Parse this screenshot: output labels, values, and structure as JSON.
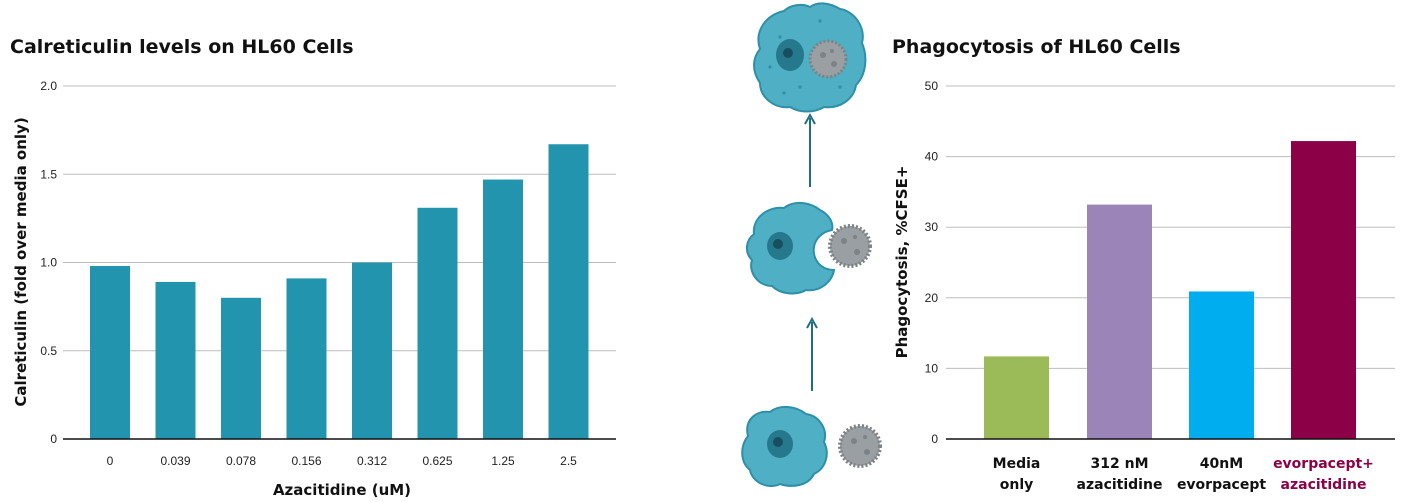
{
  "charts": {
    "left": {
      "title": "Calreticulin levels on HL60 Cells"
    },
    "right": {
      "title": "Phagocytosis of HL60 Cells"
    }
  },
  "colors": {
    "teal_bar": "#2394AD",
    "grid": "#bdbdbd",
    "axis": "#111111",
    "media_only": "#9BBB59",
    "azacitidine": "#9B85B8",
    "evorpacept": "#00AEEF",
    "combo": "#8B0046",
    "cell_body": "#4FAFC4",
    "cell_outline": "#2E8FA8",
    "cell_nucleus": "#1F6E84",
    "cancer_cell": "#9A9FA3",
    "arrow": "#1F6E84"
  },
  "diagram": {
    "icons": [
      "macrophage-engulfed-icon",
      "macrophage-engulfing-icon",
      "macrophage-approaching-icon",
      "cancer-cell-icon",
      "up-arrow-icon"
    ]
  },
  "chart_data": [
    {
      "type": "bar",
      "title": "Calreticulin levels on HL60 Cells",
      "xlabel": "Azacitidine (uM)",
      "ylabel": "Calreticulin (fold over media only)",
      "categories": [
        "0",
        "0.039",
        "0.078",
        "0.156",
        "0.312",
        "0.625",
        "1.25",
        "2.5"
      ],
      "values": [
        0.98,
        0.89,
        0.8,
        0.91,
        1.0,
        1.31,
        1.47,
        1.67
      ],
      "ylim": [
        0,
        2.0
      ],
      "yticks": [
        "0",
        "0.5",
        "1.0",
        "1.5",
        "2.0"
      ],
      "ytick_values": [
        0,
        0.5,
        1.0,
        1.5,
        2.0
      ],
      "grid": true,
      "legend": "none"
    },
    {
      "type": "bar",
      "title": "Phagocytosis of HL60 Cells",
      "xlabel": "",
      "ylabel": "Phagocytosis, %CFSE+",
      "categories": [
        {
          "line1": "Media",
          "line2": "only"
        },
        {
          "line1": "312 nM",
          "line2": "azacitidine"
        },
        {
          "line1": "40nM",
          "line2": "evorpacept"
        },
        {
          "line1": "evorpacept+",
          "line2": "azacitidine"
        }
      ],
      "values": [
        11.7,
        33.2,
        20.9,
        42.2
      ],
      "bar_colors": [
        "#9BBB59",
        "#9B85B8",
        "#00AEEF",
        "#8B0046"
      ],
      "label_colors": [
        "#111111",
        "#111111",
        "#111111",
        "#8B0046"
      ],
      "ylim": [
        0,
        50
      ],
      "yticks": [
        "0",
        "10",
        "20",
        "30",
        "40",
        "50"
      ],
      "ytick_values": [
        0,
        10,
        20,
        30,
        40,
        50
      ],
      "grid": true,
      "legend": "none"
    }
  ]
}
